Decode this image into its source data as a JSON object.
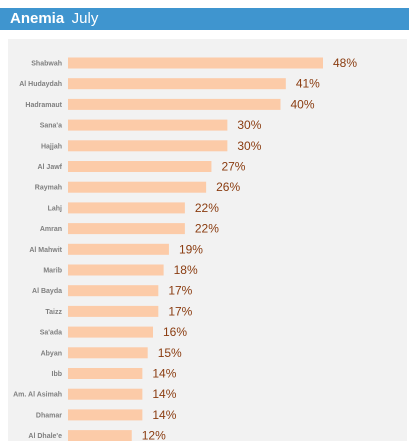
{
  "header": {
    "title": "Anemia",
    "subtitle": "July"
  },
  "colors": {
    "header_bg": "#3f95cf",
    "panel_bg": "#f2f2f2",
    "bar": "#fccba8",
    "value_text": "#8a3c10",
    "label_text": "#7f7f7f"
  },
  "chart_data": {
    "type": "bar",
    "orientation": "horizontal",
    "title": "",
    "xlabel": "",
    "ylabel": "",
    "categories": [
      "Shabwah",
      "Al Hudaydah",
      "Hadramaut",
      "Sana'a",
      "Hajjah",
      "Al Jawf",
      "Raymah",
      "Lahj",
      "Amran",
      "Al Mahwit",
      "Marib",
      "Al Bayda",
      "Taizz",
      "Sa'ada",
      "Abyan",
      "Ibb",
      "Am. Al Asimah",
      "Dhamar",
      "Al Dhale'e"
    ],
    "values": [
      48,
      41,
      40,
      30,
      30,
      27,
      26,
      22,
      22,
      19,
      18,
      17,
      17,
      16,
      15,
      14,
      14,
      14,
      12
    ],
    "value_labels": [
      "48%",
      "41%",
      "40%",
      "30%",
      "30%",
      "27%",
      "26%",
      "22%",
      "22%",
      "19%",
      "18%",
      "17%",
      "17%",
      "16%",
      "15%",
      "14%",
      "14%",
      "14%",
      "12%"
    ],
    "xlim": [
      0,
      48
    ],
    "grid": false,
    "legend": "none"
  }
}
